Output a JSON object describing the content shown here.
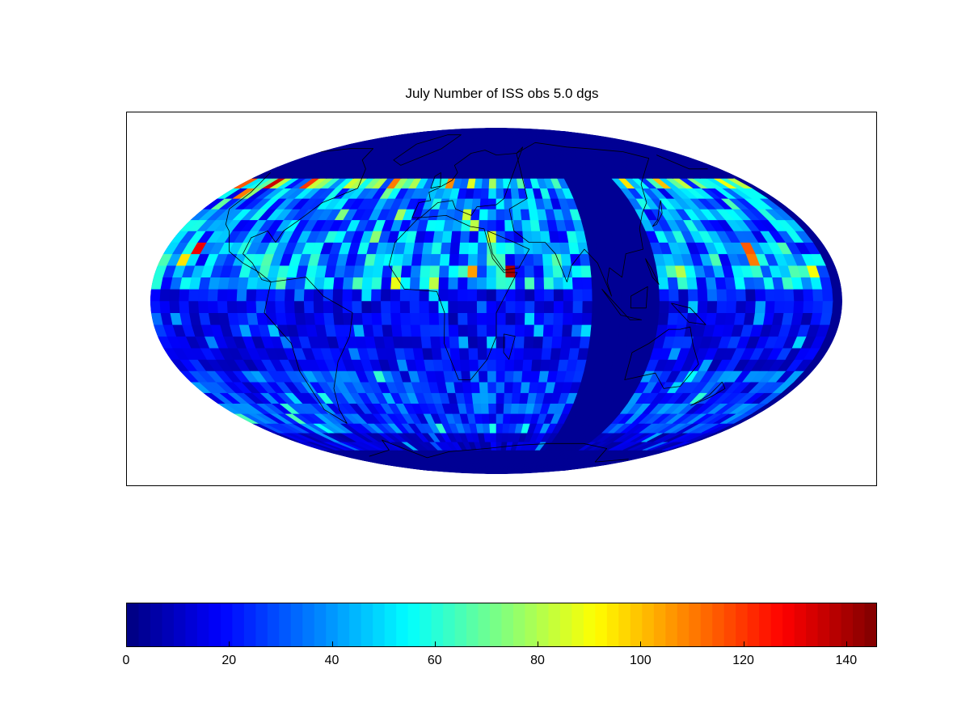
{
  "title": "July Number of ISS obs 5.0 dgs",
  "projection": "Mollweide",
  "grid_resolution_deg": 5,
  "colormap": "jet",
  "colorbar": {
    "min": 0,
    "max": 146,
    "ticks": [
      0,
      20,
      40,
      60,
      80,
      100,
      120,
      140
    ],
    "tick_labels": [
      "0",
      "20",
      "40",
      "60",
      "80",
      "100",
      "120",
      "140"
    ]
  },
  "coverage": {
    "lat_range": [
      -70,
      55
    ],
    "gap_lon_range": [
      90,
      125
    ],
    "gap_note": "no observations in this longitude band"
  },
  "hotspots": [
    {
      "lon": -140,
      "lat": 50,
      "value": 115
    },
    {
      "lon": -130,
      "lat": 45,
      "value": 110
    },
    {
      "lon": -120,
      "lat": 50,
      "value": 135
    },
    {
      "lon": -95,
      "lat": 50,
      "value": 120
    },
    {
      "lon": -125,
      "lat": 20,
      "value": 130
    },
    {
      "lon": -130,
      "lat": 15,
      "value": 95
    },
    {
      "lon": -35,
      "lat": 50,
      "value": 110
    },
    {
      "lon": 25,
      "lat": 10,
      "value": 105
    },
    {
      "lon": 45,
      "lat": 10,
      "value": 140
    },
    {
      "lon": 155,
      "lat": 50,
      "value": 100
    },
    {
      "lon": 130,
      "lat": 50,
      "value": 95
    },
    {
      "lon": 175,
      "lat": 20,
      "value": 115
    },
    {
      "lon": 175,
      "lat": 15,
      "value": 110
    },
    {
      "lon": 205,
      "lat": 10,
      "value": 90
    }
  ],
  "bands": [
    {
      "lat_min": 50,
      "lat_max": 55,
      "typical": 60
    },
    {
      "lat_min": 20,
      "lat_max": 50,
      "typical": 40
    },
    {
      "lat_min": 5,
      "lat_max": 20,
      "typical": 45
    },
    {
      "lat_min": -30,
      "lat_max": 5,
      "typical": 18
    },
    {
      "lat_min": -60,
      "lat_max": -30,
      "typical": 28
    },
    {
      "lat_min": -70,
      "lat_max": -60,
      "typical": 12
    }
  ]
}
